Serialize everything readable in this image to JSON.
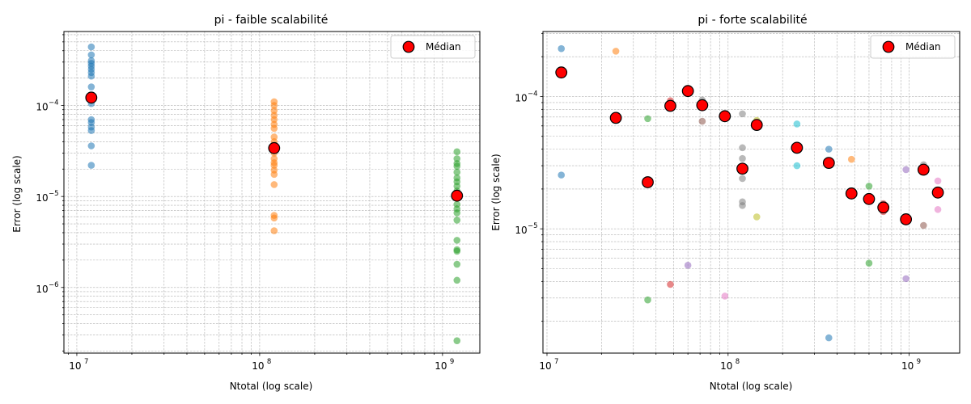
{
  "chart_data": [
    {
      "type": "scatter",
      "title": "pi - faible scalabilité",
      "xlabel": "Ntotal (log scale)",
      "ylabel": "Error (log scale)",
      "xscale": "log",
      "yscale": "log",
      "xlim": [
        8500000.0,
        1600000000.0
      ],
      "ylim": [
        1.9e-07,
        0.00065
      ],
      "xticks": [
        {
          "value": 10000000.0,
          "label": "10",
          "exp": "7"
        },
        {
          "value": 100000000.0,
          "label": "10",
          "exp": "8"
        },
        {
          "value": 1000000000.0,
          "label": "10",
          "exp": "9"
        }
      ],
      "yticks": [
        {
          "value": 1e-06,
          "label": "10",
          "exp": "−6"
        },
        {
          "value": 1e-05,
          "label": "10",
          "exp": "−5"
        },
        {
          "value": 0.0001,
          "label": "10",
          "exp": "−4"
        }
      ],
      "grid": true,
      "legend": {
        "position": "top-right",
        "label": "Médian"
      },
      "series": [
        {
          "color": "#1f77b4",
          "points": [
            [
              12000000.0,
              0.00044
            ],
            [
              12000000.0,
              0.00036
            ],
            [
              12000000.0,
              0.00031
            ],
            [
              12000000.0,
              0.00029
            ],
            [
              12000000.0,
              0.00027
            ],
            [
              12000000.0,
              0.00025
            ],
            [
              12000000.0,
              0.00023
            ],
            [
              12000000.0,
              0.00021
            ],
            [
              12000000.0,
              0.00016
            ],
            [
              12000000.0,
              0.00013
            ],
            [
              12000000.0,
              0.000115
            ],
            [
              12000000.0,
              0.000105
            ],
            [
              12000000.0,
              7e-05
            ],
            [
              12000000.0,
              6.5e-05
            ],
            [
              12000000.0,
              5.8e-05
            ],
            [
              12000000.0,
              5.3e-05
            ],
            [
              12000000.0,
              3.6e-05
            ],
            [
              12000000.0,
              2.2e-05
            ]
          ]
        },
        {
          "color": "#ff7f0e",
          "points": [
            [
              120000000.0,
              0.00011
            ],
            [
              120000000.0,
              0.0001
            ],
            [
              120000000.0,
              8.8e-05
            ],
            [
              120000000.0,
              7.8e-05
            ],
            [
              120000000.0,
              7e-05
            ],
            [
              120000000.0,
              6.2e-05
            ],
            [
              120000000.0,
              5.6e-05
            ],
            [
              120000000.0,
              4.5e-05
            ],
            [
              120000000.0,
              4e-05
            ],
            [
              120000000.0,
              3.4e-05
            ],
            [
              120000000.0,
              3e-05
            ],
            [
              120000000.0,
              2.6e-05
            ],
            [
              120000000.0,
              2.35e-05
            ],
            [
              120000000.0,
              2.2e-05
            ],
            [
              120000000.0,
              1.95e-05
            ],
            [
              120000000.0,
              1.75e-05
            ],
            [
              120000000.0,
              1.35e-05
            ],
            [
              120000000.0,
              6.2e-06
            ],
            [
              120000000.0,
              5.8e-06
            ],
            [
              120000000.0,
              4.2e-06
            ]
          ]
        },
        {
          "color": "#2ca02c",
          "points": [
            [
              1200000000.0,
              3.1e-05
            ],
            [
              1200000000.0,
              2.6e-05
            ],
            [
              1200000000.0,
              2.3e-05
            ],
            [
              1200000000.0,
              2.15e-05
            ],
            [
              1200000000.0,
              1.85e-05
            ],
            [
              1200000000.0,
              1.6e-05
            ],
            [
              1200000000.0,
              1.45e-05
            ],
            [
              1200000000.0,
              1.3e-05
            ],
            [
              1200000000.0,
              1.15e-05
            ],
            [
              1200000000.0,
              1.02e-05
            ],
            [
              1200000000.0,
              8.2e-06
            ],
            [
              1200000000.0,
              7.3e-06
            ],
            [
              1200000000.0,
              6.6e-06
            ],
            [
              1200000000.0,
              5.5e-06
            ],
            [
              1200000000.0,
              3.3e-06
            ],
            [
              1200000000.0,
              2.6e-06
            ],
            [
              1200000000.0,
              2.5e-06
            ],
            [
              1200000000.0,
              1.8e-06
            ],
            [
              1200000000.0,
              1.2e-06
            ],
            [
              1200000000.0,
              2.6e-07
            ]
          ]
        }
      ],
      "medians": [
        [
          12000000.0,
          0.000122
        ],
        [
          120000000.0,
          3.4e-05
        ],
        [
          1200000000.0,
          1.02e-05
        ]
      ]
    },
    {
      "type": "scatter",
      "title": "pi - forte scalabilité",
      "xlabel": "Ntotal (log scale)",
      "ylabel": "Error (log scale)",
      "xscale": "log",
      "yscale": "log",
      "xlim": [
        9500000.0,
        1900000000.0
      ],
      "ylim": [
        1.15e-06,
        0.00031
      ],
      "xticks": [
        {
          "value": 10000000.0,
          "label": "10",
          "exp": "7"
        },
        {
          "value": 100000000.0,
          "label": "10",
          "exp": "8"
        },
        {
          "value": 1000000000.0,
          "label": "10",
          "exp": "9"
        }
      ],
      "yticks": [
        {
          "value": 1e-05,
          "label": "10",
          "exp": "−5"
        },
        {
          "value": 0.0001,
          "label": "10",
          "exp": "−4"
        }
      ],
      "grid": true,
      "legend": {
        "position": "top-right",
        "label": "Médian"
      },
      "series": [
        {
          "color": "#1f77b4",
          "points": [
            [
              12000000.0,
              0.00023
            ],
            [
              12000000.0,
              0.00015
            ],
            [
              12000000.0,
              2.55e-05
            ],
            [
              360000000.0,
              4e-05
            ],
            [
              360000000.0,
              1.5e-06
            ]
          ]
        },
        {
          "color": "#ff7f0e",
          "points": [
            [
              24000000.0,
              0.00022
            ],
            [
              24000000.0,
              6.9e-05
            ],
            [
              480000000.0,
              3.35e-05
            ]
          ]
        },
        {
          "color": "#2ca02c",
          "points": [
            [
              36000000.0,
              6.8e-05
            ],
            [
              36000000.0,
              2.9e-06
            ],
            [
              600000000.0,
              2.1e-05
            ],
            [
              600000000.0,
              5.5e-06
            ]
          ]
        },
        {
          "color": "#d62728",
          "points": [
            [
              48000000.0,
              9.3e-05
            ],
            [
              48000000.0,
              3.8e-06
            ],
            [
              720000000.0,
              1.55e-05
            ],
            [
              720000000.0,
              1.35e-05
            ]
          ]
        },
        {
          "color": "#9467bd",
          "points": [
            [
              60000000.0,
              0.000112
            ],
            [
              60000000.0,
              5.3e-06
            ],
            [
              960000000.0,
              2.8e-05
            ],
            [
              960000000.0,
              4.2e-06
            ]
          ]
        },
        {
          "color": "#8c564b",
          "points": [
            [
              72000000.0,
              6.5e-05
            ],
            [
              1200000000.0,
              1.06e-05
            ]
          ]
        },
        {
          "color": "#e377c2",
          "points": [
            [
              96000000.0,
              3.1e-06
            ],
            [
              1440000000.0,
              2.3e-05
            ],
            [
              1440000000.0,
              1.4e-05
            ]
          ]
        },
        {
          "color": "#7f7f7f",
          "points": [
            [
              72000000.0,
              9.4e-05
            ],
            [
              96000000.0,
              7.4e-05
            ],
            [
              120000000.0,
              7.4e-05
            ],
            [
              120000000.0,
              4.1e-05
            ],
            [
              120000000.0,
              3.4e-05
            ],
            [
              120000000.0,
              2.4e-05
            ],
            [
              120000000.0,
              1.6e-05
            ],
            [
              120000000.0,
              1.5e-05
            ],
            [
              1200000000.0,
              3.05e-05
            ]
          ]
        },
        {
          "color": "#bcbd22",
          "points": [
            [
              144000000.0,
              6.6e-05
            ],
            [
              144000000.0,
              1.23e-05
            ]
          ]
        },
        {
          "color": "#17becf",
          "points": [
            [
              240000000.0,
              6.2e-05
            ],
            [
              240000000.0,
              3e-05
            ]
          ]
        }
      ],
      "medians": [
        [
          12000000.0,
          0.000152
        ],
        [
          24000000.0,
          6.9e-05
        ],
        [
          36000000.0,
          2.25e-05
        ],
        [
          48000000.0,
          8.5e-05
        ],
        [
          60000000.0,
          0.00011
        ],
        [
          72000000.0,
          8.6e-05
        ],
        [
          96000000.0,
          7.1e-05
        ],
        [
          120000000.0,
          2.85e-05
        ],
        [
          144000000.0,
          6.1e-05
        ],
        [
          240000000.0,
          4.1e-05
        ],
        [
          360000000.0,
          3.15e-05
        ],
        [
          480000000.0,
          1.85e-05
        ],
        [
          600000000.0,
          1.68e-05
        ],
        [
          720000000.0,
          1.45e-05
        ],
        [
          960000000.0,
          1.18e-05
        ],
        [
          1200000000.0,
          2.8e-05
        ],
        [
          1440000000.0,
          1.88e-05
        ]
      ]
    }
  ]
}
